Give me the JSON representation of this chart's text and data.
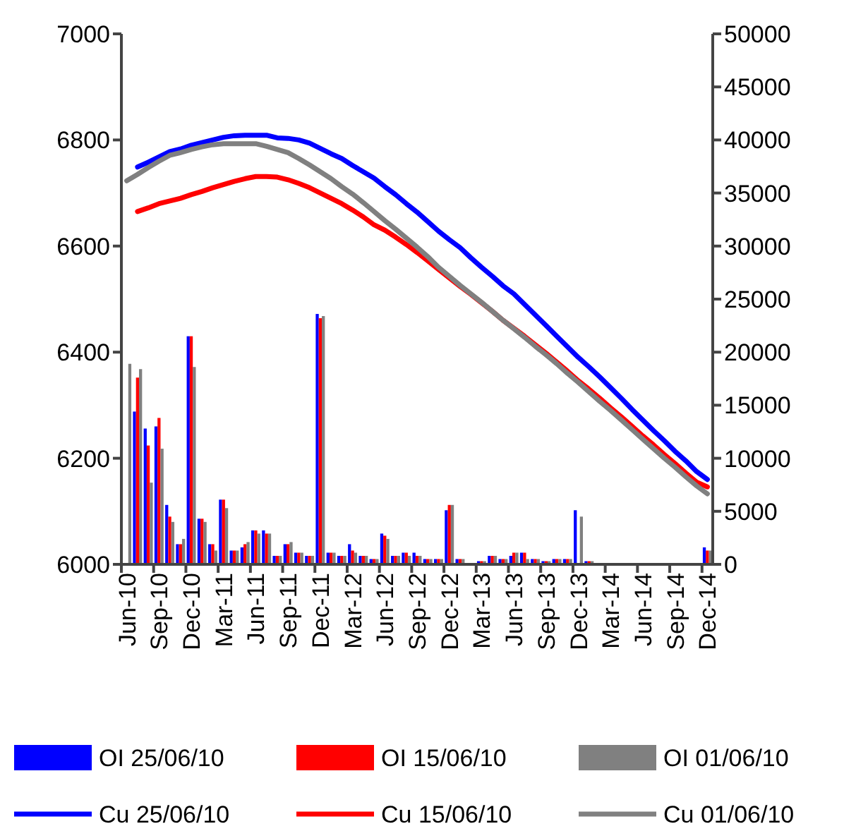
{
  "chart_data": {
    "type": "bar",
    "categories": [
      "Jun-10",
      null,
      null,
      "Sep-10",
      null,
      null,
      "Dec-10",
      null,
      null,
      "Mar-11",
      null,
      null,
      "Jun-11",
      null,
      null,
      "Sep-11",
      null,
      null,
      "Dec-11",
      null,
      null,
      "Mar-12",
      null,
      null,
      "Jun-12",
      null,
      null,
      "Sep-12",
      null,
      null,
      "Dec-12",
      null,
      null,
      "Mar-13",
      null,
      null,
      "Jun-13",
      null,
      null,
      "Sep-13",
      null,
      null,
      "Dec-13",
      null,
      null,
      "Mar-14",
      null,
      null,
      "Jun-14",
      null,
      null,
      "Sep-14",
      null,
      null,
      "Dec-14"
    ],
    "ylim": [
      6000,
      7000
    ],
    "yticks": [
      6000,
      6200,
      6400,
      6600,
      6800,
      7000
    ],
    "y2lim": [
      0,
      50000
    ],
    "y2ticks": [
      0,
      5000,
      10000,
      15000,
      20000,
      25000,
      30000,
      35000,
      40000,
      45000,
      50000
    ],
    "grid": false,
    "legend": "bottom",
    "series": [
      {
        "name": "OI 25/06/10",
        "axis": "y2",
        "color": "#0000ff",
        "values": [
          null,
          14400,
          12800,
          13000,
          5600,
          1900,
          21500,
          4300,
          1900,
          6100,
          1300,
          1600,
          3200,
          3200,
          800,
          1900,
          1100,
          800,
          23600,
          1100,
          800,
          1900,
          800,
          500,
          2900,
          800,
          1100,
          1100,
          500,
          500,
          5100,
          500,
          null,
          300,
          800,
          500,
          800,
          1100,
          500,
          300,
          500,
          500,
          5100,
          300,
          null,
          null,
          null,
          null,
          null,
          null,
          null,
          null,
          null,
          null,
          1600
        ]
      },
      {
        "name": "OI 15/06/10",
        "axis": "y2",
        "color": "#ff0000",
        "values": [
          null,
          17600,
          11200,
          13800,
          4500,
          1900,
          21500,
          4300,
          1900,
          6100,
          1300,
          1900,
          3200,
          2900,
          800,
          1900,
          1100,
          800,
          23200,
          1100,
          800,
          1300,
          800,
          500,
          2700,
          800,
          1100,
          800,
          500,
          500,
          5600,
          500,
          null,
          300,
          800,
          500,
          1100,
          1100,
          500,
          300,
          500,
          500,
          null,
          300,
          null,
          null,
          null,
          null,
          null,
          null,
          null,
          null,
          null,
          null,
          1300
        ]
      },
      {
        "name": "OI 01/06/10",
        "axis": "y2",
        "color": "#808080",
        "values": [
          18900,
          18400,
          7700,
          10900,
          4000,
          2400,
          18600,
          4000,
          1300,
          5300,
          1300,
          2100,
          2900,
          2900,
          800,
          2100,
          1100,
          800,
          23400,
          1100,
          800,
          1100,
          800,
          500,
          2400,
          800,
          800,
          800,
          500,
          500,
          5600,
          500,
          null,
          300,
          800,
          500,
          1100,
          500,
          500,
          300,
          500,
          500,
          4500,
          300,
          null,
          null,
          null,
          null,
          null,
          null,
          null,
          null,
          null,
          null,
          1300
        ]
      },
      {
        "name": "Cu 25/06/10",
        "type": "line",
        "axis": "y",
        "color": "#0000ff",
        "values": [
          null,
          6749,
          6758,
          6768,
          6778,
          6783,
          6790,
          6795,
          6800,
          6805,
          6808,
          6809,
          6809,
          6809,
          6804,
          6803,
          6800,
          6794,
          6784,
          6774,
          6765,
          6752,
          6740,
          6728,
          6712,
          6697,
          6680,
          6664,
          6646,
          6628,
          6612,
          6597,
          6578,
          6560,
          6543,
          6525,
          6510,
          6490,
          6470,
          6450,
          6430,
          6410,
          6390,
          6372,
          6353,
          6333,
          6313,
          6292,
          6272,
          6252,
          6233,
          6213,
          6195,
          6175,
          6160
        ]
      },
      {
        "name": "Cu 15/06/10",
        "type": "line",
        "axis": "y",
        "color": "#ff0000",
        "values": [
          null,
          6665,
          6672,
          6680,
          6685,
          6690,
          6697,
          6703,
          6710,
          6716,
          6722,
          6727,
          6731,
          6731,
          6730,
          6725,
          6718,
          6710,
          6700,
          6690,
          6680,
          6668,
          6655,
          6640,
          6630,
          6617,
          6603,
          6588,
          6572,
          6556,
          6540,
          6524,
          6509,
          6493,
          6477,
          6460,
          6445,
          6430,
          6414,
          6398,
          6381,
          6364,
          6346,
          6330,
          6313,
          6295,
          6278,
          6260,
          6242,
          6225,
          6207,
          6190,
          6172,
          6155,
          6146
        ]
      },
      {
        "name": "Cu 01/06/10",
        "type": "line",
        "axis": "y",
        "color": "#808080",
        "values": [
          6723,
          6735,
          6748,
          6760,
          6771,
          6776,
          6782,
          6787,
          6791,
          6793,
          6793,
          6793,
          6793,
          6788,
          6782,
          6776,
          6765,
          6753,
          6740,
          6727,
          6712,
          6698,
          6682,
          6665,
          6648,
          6632,
          6615,
          6598,
          6580,
          6560,
          6543,
          6526,
          6510,
          6494,
          6477,
          6460,
          6444,
          6428,
          6411,
          6395,
          6378,
          6360,
          6343,
          6325,
          6307,
          6290,
          6272,
          6254,
          6236,
          6218,
          6200,
          6183,
          6165,
          6148,
          6133
        ]
      }
    ]
  }
}
